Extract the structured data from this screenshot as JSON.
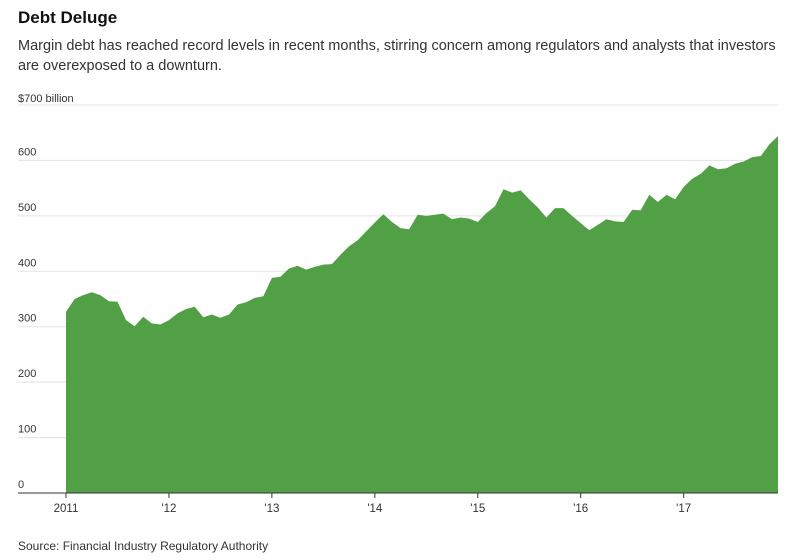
{
  "title": "Debt Deluge",
  "subtitle": "Margin debt has reached record levels in recent months, stirring concern among regulators and analysts that investors are overexposed to a downturn.",
  "source": "Source: Financial Industry Regulatory Authority",
  "colors": {
    "area": "#52a046",
    "grid": "#e3e3e3",
    "axis": "#333333"
  },
  "chart_data": {
    "type": "area",
    "title": "Debt Deluge",
    "unit_label": "$700 billion",
    "y_ticks": [
      0,
      100,
      200,
      300,
      400,
      500,
      600
    ],
    "ylim": [
      0,
      700
    ],
    "x_tick_labels": [
      "2011",
      "'12",
      "'13",
      "'14",
      "'15",
      "'16",
      "'17"
    ],
    "xlim": [
      "2011-01",
      "2017-12"
    ],
    "grid": true,
    "series": [
      {
        "x": [
          "2011-01",
          "2011-02",
          "2011-03",
          "2011-04",
          "2011-05",
          "2011-06",
          "2011-07",
          "2011-08",
          "2011-09",
          "2011-10",
          "2011-11",
          "2011-12",
          "2012-01",
          "2012-02",
          "2012-03",
          "2012-04",
          "2012-05",
          "2012-06",
          "2012-07",
          "2012-08",
          "2012-09",
          "2012-10",
          "2012-11",
          "2012-12",
          "2013-01",
          "2013-02",
          "2013-03",
          "2013-04",
          "2013-05",
          "2013-06",
          "2013-07",
          "2013-08",
          "2013-09",
          "2013-10",
          "2013-11",
          "2013-12",
          "2014-01",
          "2014-02",
          "2014-03",
          "2014-04",
          "2014-05",
          "2014-06",
          "2014-07",
          "2014-08",
          "2014-09",
          "2014-10",
          "2014-11",
          "2014-12",
          "2015-01",
          "2015-02",
          "2015-03",
          "2015-04",
          "2015-05",
          "2015-06",
          "2015-07",
          "2015-08",
          "2015-09",
          "2015-10",
          "2015-11",
          "2015-12",
          "2016-01",
          "2016-02",
          "2016-03",
          "2016-04",
          "2016-05",
          "2016-06",
          "2016-07",
          "2016-08",
          "2016-09",
          "2016-10",
          "2016-11",
          "2016-12",
          "2017-01",
          "2017-02",
          "2017-03",
          "2017-04",
          "2017-05",
          "2017-06",
          "2017-07",
          "2017-08",
          "2017-09",
          "2017-10",
          "2017-11",
          "2017-12"
        ],
        "values": [
          327,
          350,
          357,
          362,
          357,
          346,
          345,
          312,
          301,
          318,
          306,
          304,
          312,
          324,
          332,
          336,
          317,
          322,
          316,
          322,
          340,
          344,
          352,
          355,
          388,
          390,
          405,
          410,
          403,
          408,
          412,
          413,
          430,
          445,
          456,
          472,
          488,
          503,
          489,
          478,
          476,
          502,
          500,
          502,
          504,
          494,
          497,
          495,
          489,
          505,
          517,
          548,
          542,
          546,
          530,
          515,
          497,
          514,
          514,
          500,
          487,
          474,
          484,
          494,
          490,
          489,
          511,
          510,
          538,
          525,
          538,
          530,
          552,
          567,
          576,
          591,
          584,
          586,
          594,
          598,
          606,
          608,
          629,
          644
        ]
      }
    ]
  }
}
